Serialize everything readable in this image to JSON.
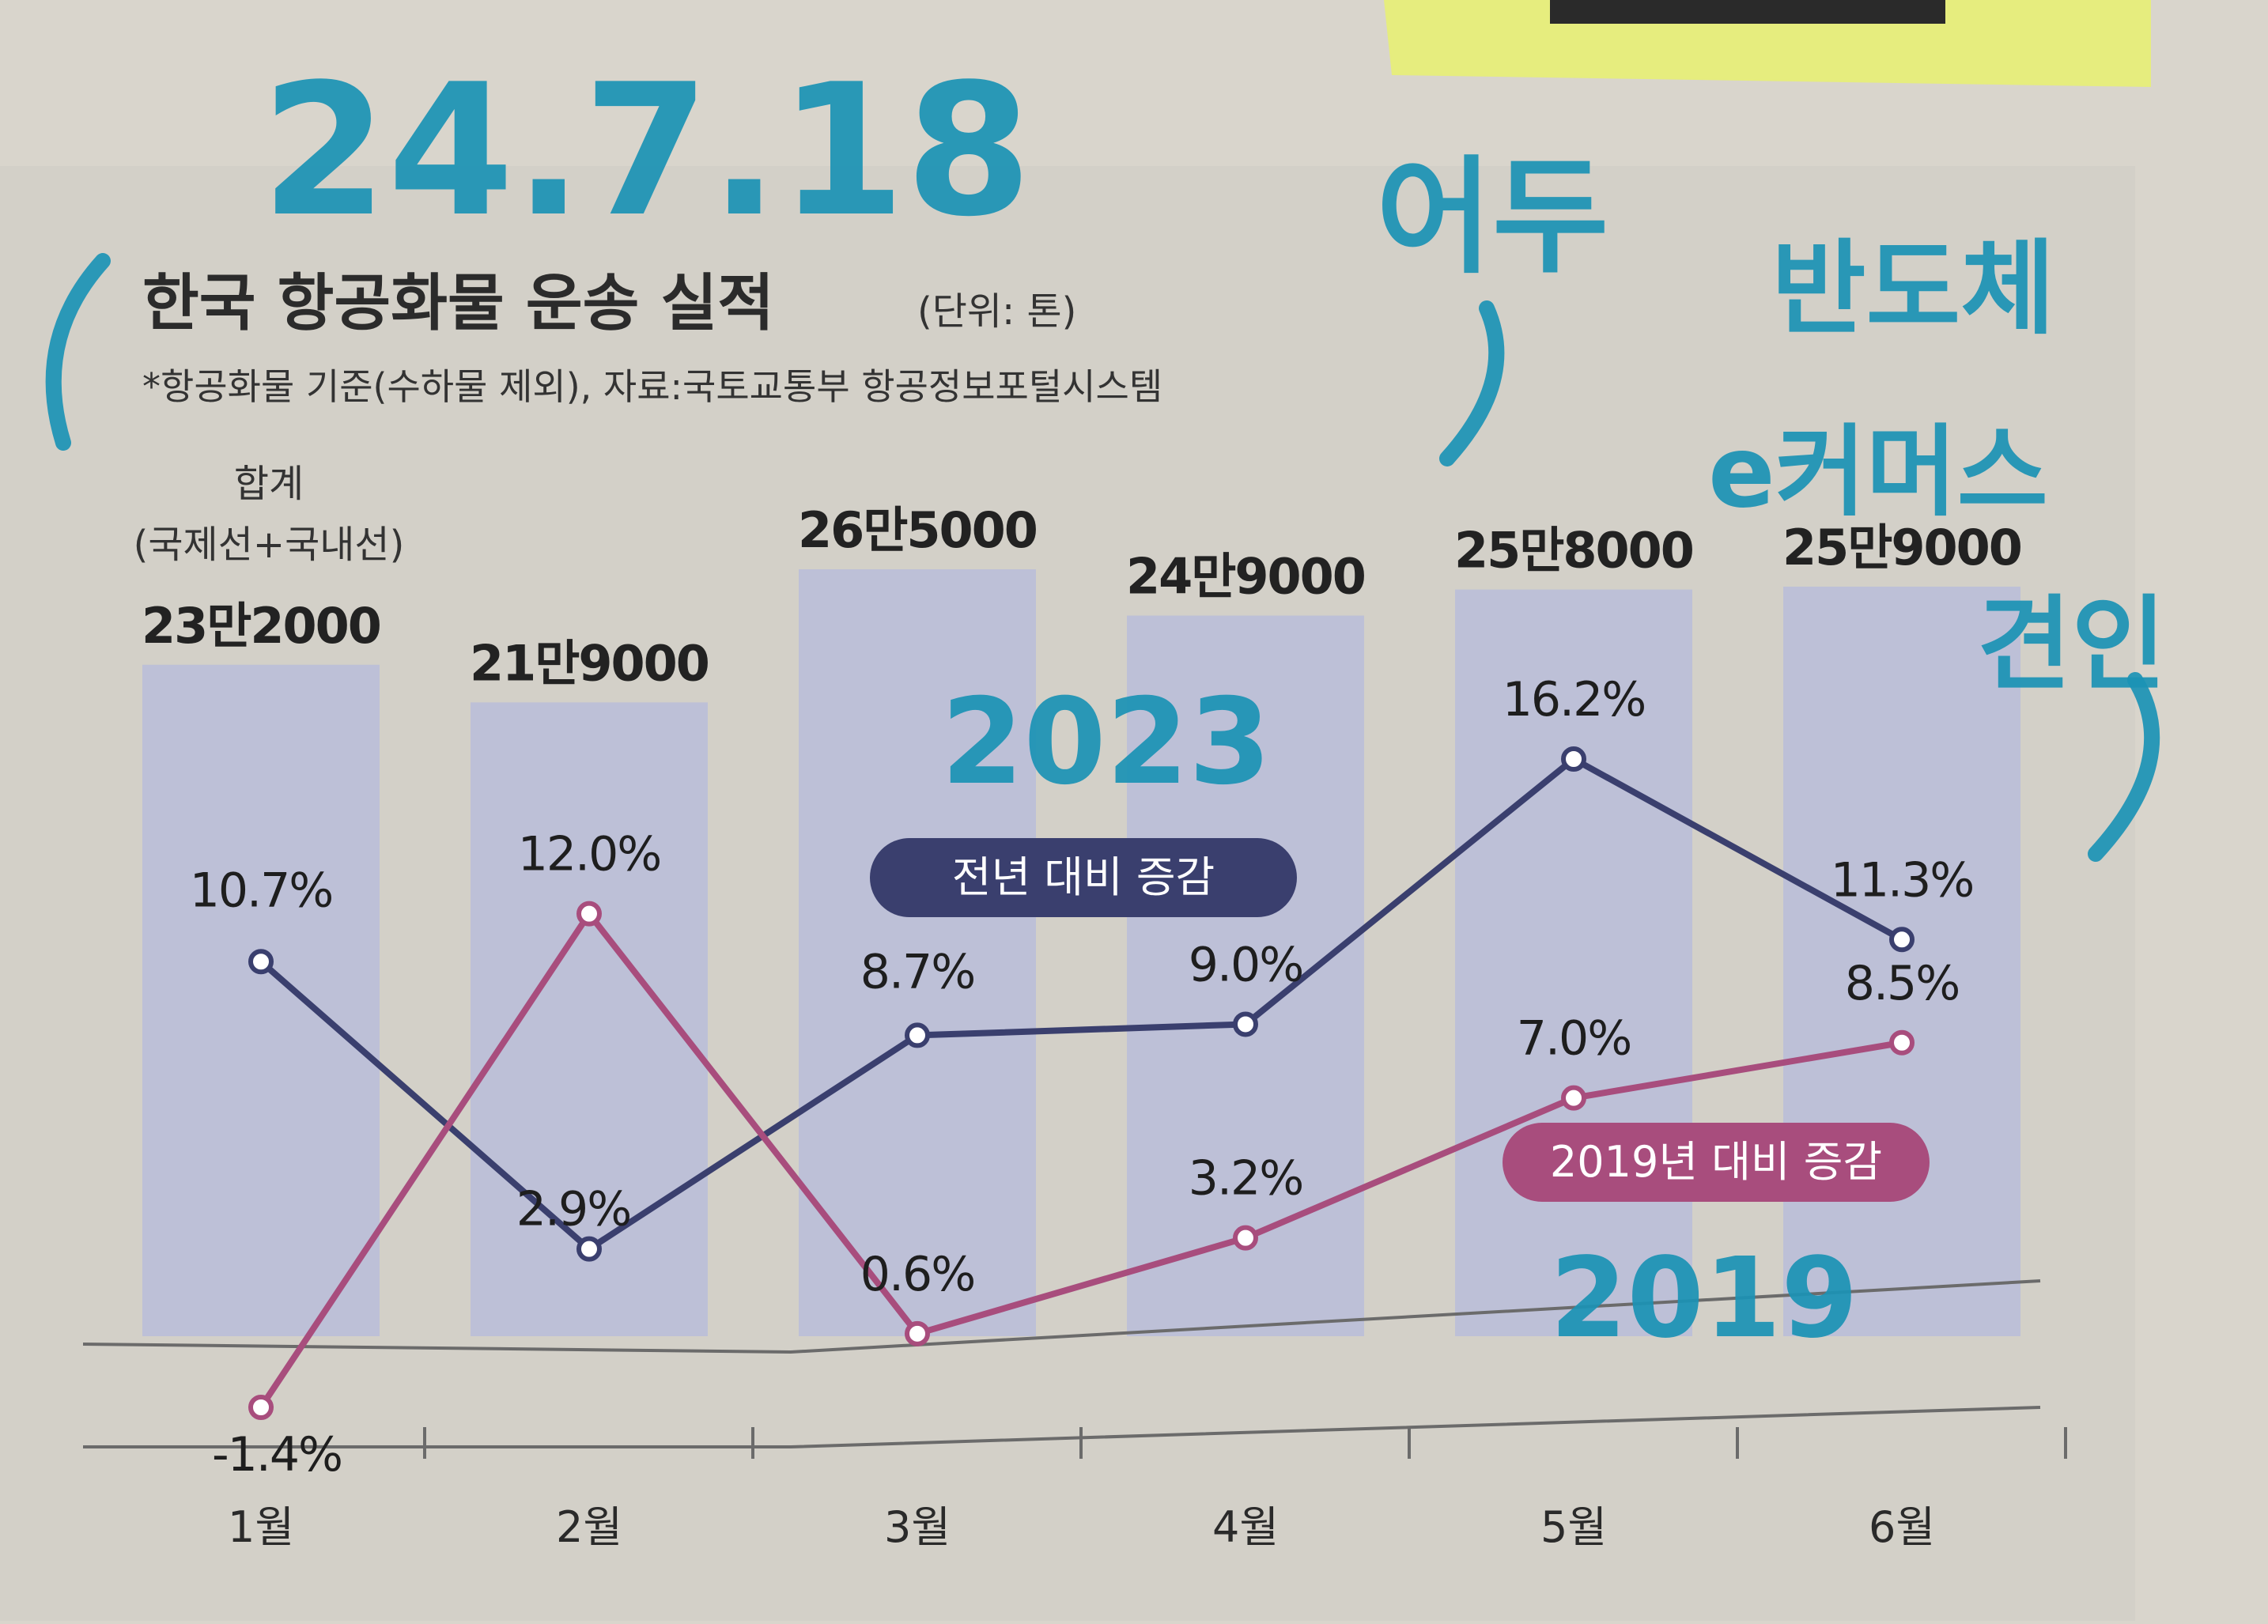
{
  "chart_data": {
    "type": "bar+line",
    "title": "한국 항공화물 운송 실적",
    "unit": "(단위: 톤)",
    "note": "*항공화물 기준(수하물 제외), 자료:국토교통부 항공정보포털시스템",
    "bar_series_label": [
      "합계",
      "(국제선+국내선)"
    ],
    "categories": [
      "1월",
      "2월",
      "3월",
      "4월",
      "5월",
      "6월"
    ],
    "bars": {
      "values": [
        232000,
        219000,
        265000,
        249000,
        258000,
        259000
      ],
      "labels": [
        "23만2000",
        "21만9000",
        "26만5000",
        "24만9000",
        "25만8000",
        "25만9000"
      ]
    },
    "series": [
      {
        "name": "전년 대비 증감",
        "values": [
          10.7,
          2.9,
          8.7,
          9.0,
          16.2,
          11.3
        ],
        "labels": [
          "10.7%",
          "2.9%",
          "8.7%",
          "9.0%",
          "16.2%",
          "11.3%"
        ],
        "color": "#3a3f6e"
      },
      {
        "name": "2019년 대비 증감",
        "values": [
          -1.4,
          12.0,
          0.6,
          3.2,
          7.0,
          8.5
        ],
        "labels": [
          "-1.4%",
          "12.0%",
          "0.6%",
          "3.2%",
          "7.0%",
          "8.5%"
        ],
        "color": "#a84d7d"
      }
    ],
    "ylim": [
      -1.4,
      16.2
    ]
  },
  "handwriting": {
    "date": "24.7.18",
    "note_line1": "어두",
    "note_line2": "반도체",
    "note_line3": "e커머스",
    "note_line4": "견인",
    "year_prev": "2023",
    "year_base": "2019"
  },
  "colors": {
    "paper": "#d9d5cc",
    "bar": "#b9bdd9",
    "line_prev": "#3a3f6e",
    "line_2019": "#a84d7d",
    "ink": "#1b93b5",
    "highlighter": "#e8f26a"
  }
}
